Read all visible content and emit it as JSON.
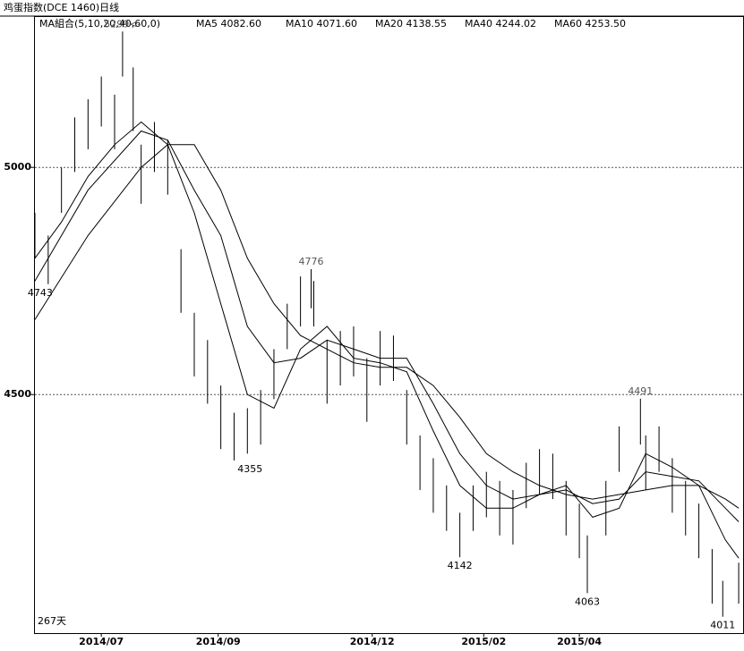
{
  "chart_data": {
    "type": "hlbar",
    "title": "鸡蛋指数(DCE 1460)日线",
    "ma_legend": [
      "MA組合(5,10,20,40,60,0)",
      "MA5 4082.60",
      "MA10 4071.60",
      "MA20 4138.55",
      "MA40 4244.02",
      "MA60 4253.50"
    ],
    "days_label": "267天",
    "ylim": [
      3975,
      5333
    ],
    "yticks": [
      4500,
      5000
    ],
    "grid": true,
    "xlim": [
      0,
      267
    ],
    "xticks": [
      {
        "value": 25,
        "label": "2014/07"
      },
      {
        "value": 69,
        "label": "2014/09"
      },
      {
        "value": 127,
        "label": "2014/12"
      },
      {
        "value": 169,
        "label": "2015/02"
      },
      {
        "value": 205,
        "label": "2015/04"
      }
    ],
    "x": [
      0,
      5,
      10,
      15,
      20,
      25,
      30,
      33,
      37,
      40,
      45,
      50,
      55,
      60,
      65,
      70,
      75,
      80,
      85,
      90,
      95,
      100,
      104,
      105,
      110,
      115,
      120,
      125,
      130,
      135,
      140,
      145,
      150,
      155,
      160,
      165,
      170,
      175,
      180,
      185,
      190,
      195,
      200,
      205,
      208,
      215,
      220,
      228,
      230,
      235,
      240,
      245,
      250,
      255,
      259,
      265
    ],
    "high": [
      4900,
      4850,
      5000,
      5110,
      5150,
      5200,
      5160,
      5299,
      5220,
      5050,
      5100,
      5060,
      4820,
      4680,
      4620,
      4520,
      4460,
      4470,
      4510,
      4600,
      4700,
      4760,
      4776,
      4750,
      4620,
      4640,
      4650,
      4580,
      4640,
      4630,
      4510,
      4410,
      4360,
      4300,
      4240,
      4300,
      4330,
      4310,
      4290,
      4350,
      4380,
      4370,
      4310,
      4260,
      4190,
      4310,
      4430,
      4491,
      4410,
      4430,
      4360,
      4310,
      4260,
      4160,
      4090,
      4130
    ],
    "low": [
      4800,
      4743,
      4900,
      4990,
      5040,
      5090,
      5040,
      5200,
      5080,
      4920,
      4990,
      4940,
      4680,
      4540,
      4480,
      4380,
      4355,
      4370,
      4390,
      4490,
      4600,
      4650,
      4690,
      4650,
      4480,
      4520,
      4540,
      4440,
      4520,
      4530,
      4390,
      4290,
      4240,
      4200,
      4142,
      4200,
      4230,
      4190,
      4170,
      4250,
      4280,
      4270,
      4190,
      4140,
      4063,
      4190,
      4330,
      4390,
      4290,
      4330,
      4240,
      4190,
      4140,
      4040,
      4011,
      4040
    ],
    "ma_lines": [
      {
        "x": [
          0,
          10,
          20,
          30,
          40,
          50,
          60,
          70,
          80,
          90,
          100,
          110,
          120,
          130,
          140,
          150,
          160,
          170,
          180,
          190,
          200,
          210,
          220,
          230,
          240,
          250,
          260,
          265
        ],
        "values": [
          4800,
          4880,
          4980,
          5050,
          5100,
          5050,
          4900,
          4700,
          4500,
          4470,
          4600,
          4650,
          4580,
          4570,
          4550,
          4420,
          4300,
          4250,
          4250,
          4280,
          4300,
          4230,
          4250,
          4370,
          4340,
          4300,
          4180,
          4140
        ]
      },
      {
        "x": [
          0,
          20,
          40,
          50,
          60,
          70,
          80,
          90,
          100,
          110,
          120,
          130,
          140,
          150,
          160,
          170,
          180,
          190,
          200,
          210,
          220,
          230,
          240,
          250,
          260,
          265
        ],
        "values": [
          4750,
          4950,
          5080,
          5060,
          4950,
          4850,
          4650,
          4570,
          4580,
          4620,
          4600,
          4580,
          4580,
          4480,
          4370,
          4300,
          4270,
          4280,
          4290,
          4260,
          4270,
          4330,
          4320,
          4310,
          4250,
          4220
        ]
      },
      {
        "x": [
          0,
          20,
          40,
          50,
          60,
          70,
          80,
          90,
          100,
          110,
          120,
          130,
          140,
          150,
          160,
          170,
          180,
          190,
          200,
          210,
          220,
          230,
          240,
          250,
          260,
          265
        ],
        "values": [
          4665,
          4850,
          5000,
          5050,
          5050,
          4950,
          4800,
          4700,
          4630,
          4600,
          4570,
          4560,
          4560,
          4520,
          4450,
          4370,
          4330,
          4300,
          4280,
          4270,
          4280,
          4290,
          4300,
          4300,
          4270,
          4250
        ]
      }
    ],
    "annotations": [
      {
        "x": 33,
        "value": 5299,
        "label": "5299<-"
      },
      {
        "x": 2,
        "value": 4743,
        "label": "4743"
      },
      {
        "x": 104,
        "value": 4776,
        "label": "4776"
      },
      {
        "x": 81,
        "value": 4355,
        "label": "4355"
      },
      {
        "x": 160,
        "value": 4142,
        "label": "4142"
      },
      {
        "x": 208,
        "value": 4063,
        "label": "4063"
      },
      {
        "x": 228,
        "value": 4491,
        "label": "4491"
      },
      {
        "x": 259,
        "value": 4011,
        "label": "4011"
      }
    ]
  }
}
